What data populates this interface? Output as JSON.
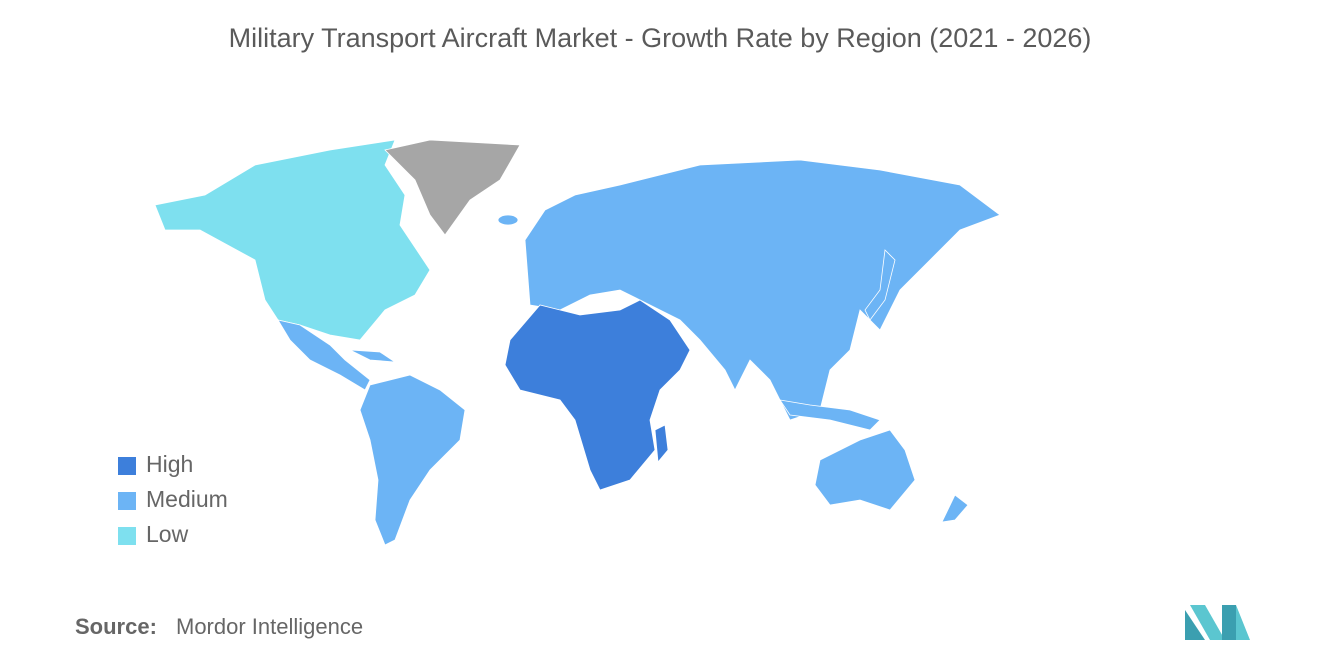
{
  "title": "Military Transport Aircraft Market - Growth Rate by Region (2021 - 2026)",
  "legend": [
    {
      "label": "High",
      "color": "#3d7fdb"
    },
    {
      "label": "Medium",
      "color": "#6cb4f5"
    },
    {
      "label": "Low",
      "color": "#7ee0ef"
    }
  ],
  "source": {
    "label": "Source:",
    "value": "Mordor Intelligence"
  }
}
